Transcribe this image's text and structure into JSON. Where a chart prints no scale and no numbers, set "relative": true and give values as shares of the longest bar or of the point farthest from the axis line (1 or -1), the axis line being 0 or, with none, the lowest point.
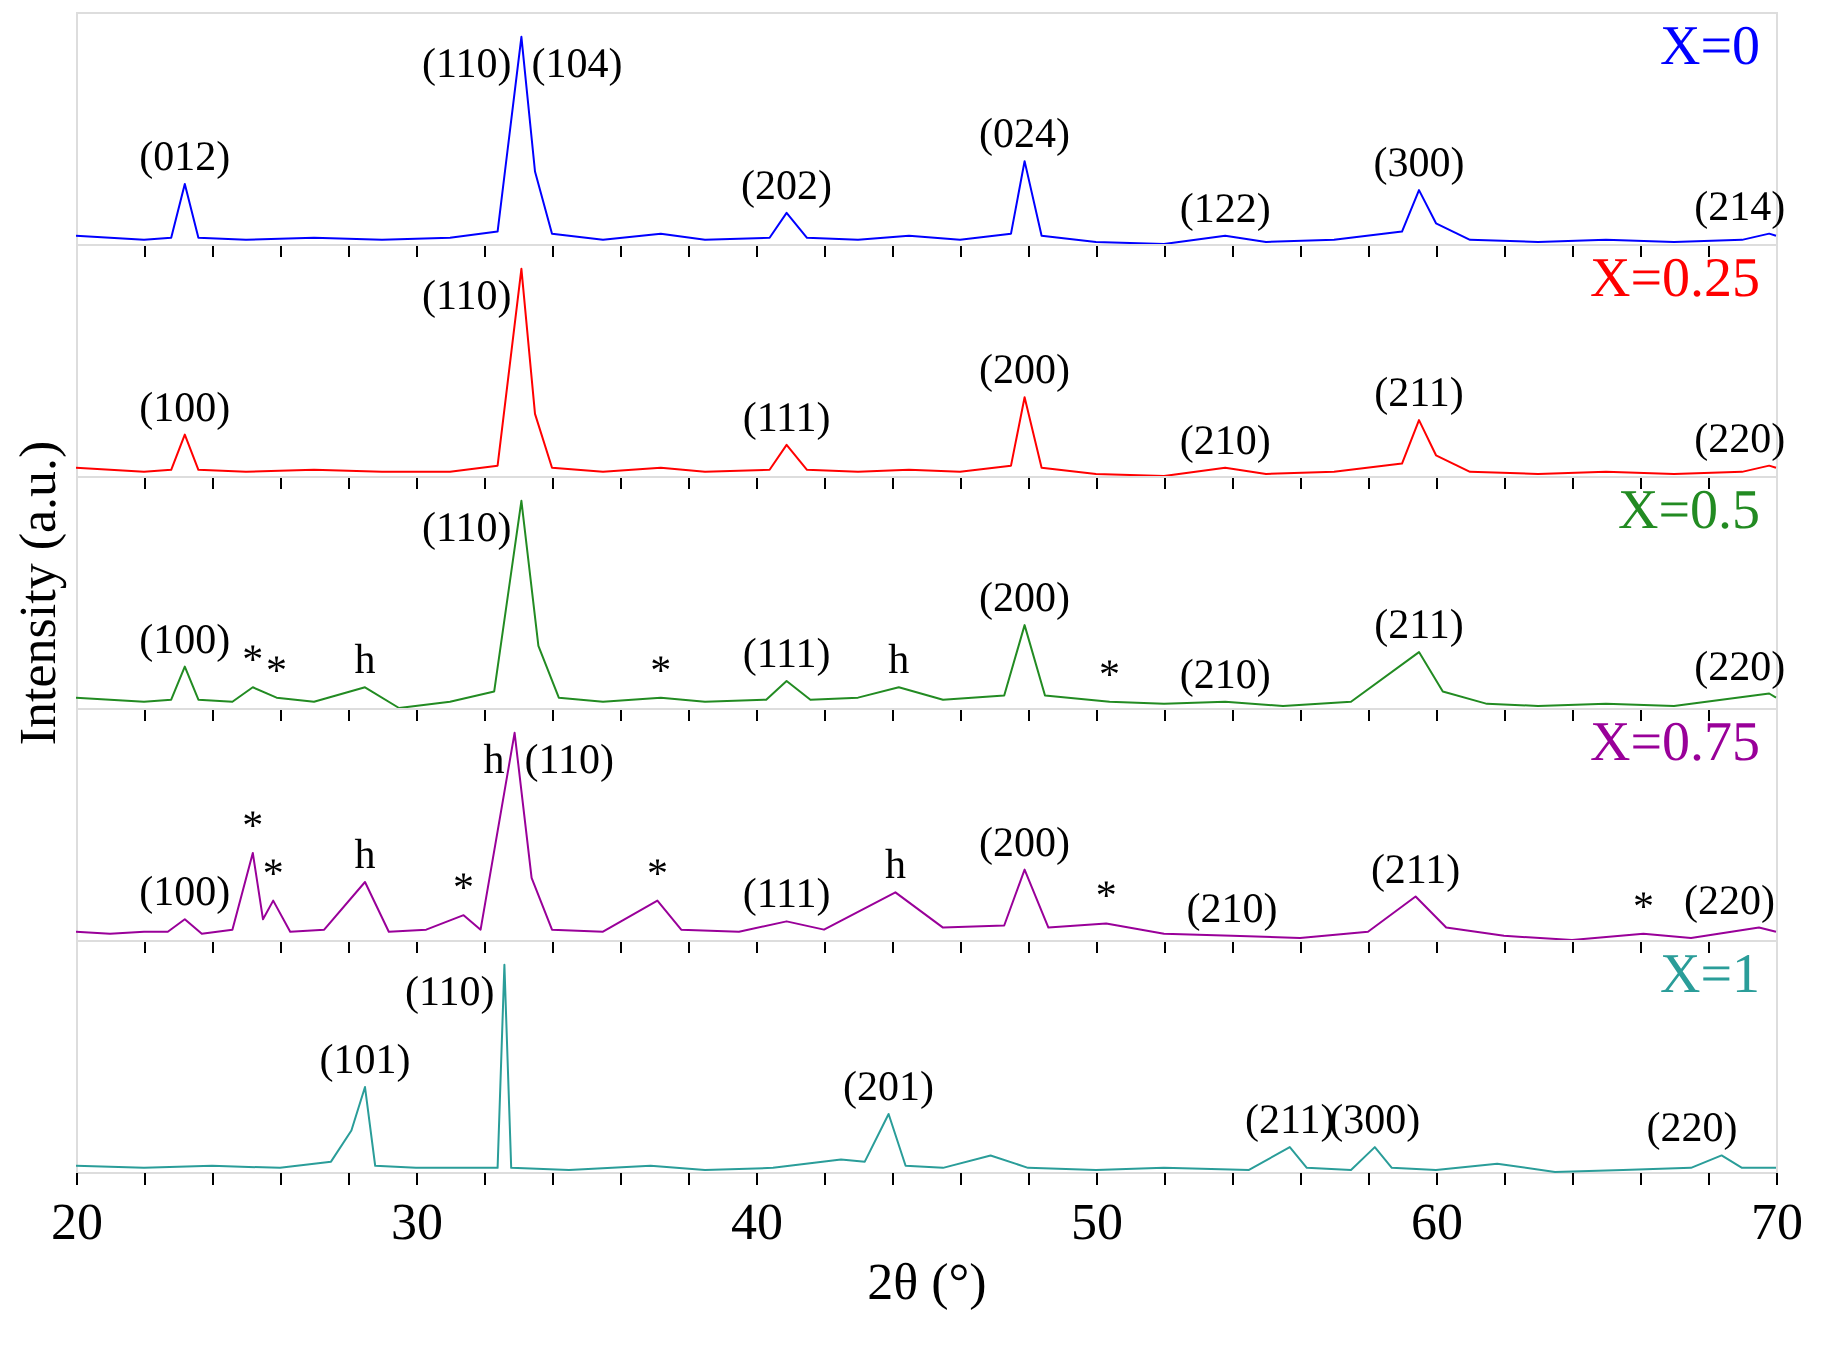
{
  "chart_data": [
    {
      "type": "line",
      "relative": true,
      "xlim": [
        20,
        70
      ],
      "xticks": [
        {
          "value": 20,
          "label": null
        },
        {
          "value": 22,
          "label": null
        },
        {
          "value": 24,
          "label": null
        },
        {
          "value": 26,
          "label": null
        },
        {
          "value": 28,
          "label": null
        },
        {
          "value": 30,
          "label": null
        },
        {
          "value": 32,
          "label": null
        },
        {
          "value": 34,
          "label": null
        },
        {
          "value": 36,
          "label": null
        },
        {
          "value": 38,
          "label": null
        },
        {
          "value": 40,
          "label": null
        },
        {
          "value": 42,
          "label": null
        },
        {
          "value": 44,
          "label": null
        },
        {
          "value": 46,
          "label": null
        },
        {
          "value": 48,
          "label": null
        },
        {
          "value": 50,
          "label": null
        },
        {
          "value": 52,
          "label": null
        },
        {
          "value": 54,
          "label": null
        },
        {
          "value": 56,
          "label": null
        },
        {
          "value": 58,
          "label": null
        },
        {
          "value": 60,
          "label": null
        },
        {
          "value": 62,
          "label": null
        },
        {
          "value": 64,
          "label": null
        },
        {
          "value": 66,
          "label": null
        },
        {
          "value": 68,
          "label": null
        },
        {
          "value": 70,
          "label": null
        }
      ],
      "tick_labels": false,
      "grid": false,
      "series": [
        {
          "name": "X=0",
          "color": "#0000ff",
          "x": [
            20,
            21,
            22,
            22.8,
            23.2,
            23.6,
            25,
            27,
            29,
            31,
            32.4,
            33.1,
            33.5,
            34,
            35.5,
            37.2,
            38.5,
            40.4,
            40.9,
            41.5,
            43,
            44.5,
            46,
            47.5,
            47.9,
            48.4,
            50,
            52,
            53.8,
            55,
            57,
            59,
            59.5,
            60,
            61,
            63,
            65,
            67,
            69,
            69.8,
            70
          ],
          "values": [
            0.04,
            0.03,
            0.02,
            0.03,
            0.29,
            0.03,
            0.02,
            0.03,
            0.02,
            0.03,
            0.06,
            1,
            0.35,
            0.05,
            0.02,
            0.05,
            0.02,
            0.03,
            0.15,
            0.03,
            0.02,
            0.04,
            0.02,
            0.05,
            0.4,
            0.04,
            0.01,
            0.0,
            0.04,
            0.01,
            0.02,
            0.06,
            0.26,
            0.1,
            0.02,
            0.01,
            0.02,
            0.01,
            0.02,
            0.05,
            0.04
          ]
        }
      ],
      "annotations": [
        {
          "text": "(012)",
          "x": 23.2,
          "y": 0.29
        },
        {
          "text": "(110)",
          "x": 33.1,
          "y": 1
        },
        {
          "text": "(104)",
          "x": 33.1,
          "y": 1
        },
        {
          "text": "(202)",
          "x": 40.9,
          "y": 0.15
        },
        {
          "text": "(024)",
          "x": 47.9,
          "y": 0.4
        },
        {
          "text": "(122)",
          "x": 53.8,
          "y": 0.04
        },
        {
          "text": "(300)",
          "x": 59.5,
          "y": 0.26
        },
        {
          "text": "(214)",
          "x": 69.8,
          "y": 0.05
        }
      ]
    },
    {
      "type": "line",
      "relative": true,
      "xlim": [
        20,
        70
      ],
      "xticks": [
        {
          "value": 20,
          "label": null
        },
        {
          "value": 22,
          "label": null
        },
        {
          "value": 24,
          "label": null
        },
        {
          "value": 26,
          "label": null
        },
        {
          "value": 28,
          "label": null
        },
        {
          "value": 30,
          "label": null
        },
        {
          "value": 32,
          "label": null
        },
        {
          "value": 34,
          "label": null
        },
        {
          "value": 36,
          "label": null
        },
        {
          "value": 38,
          "label": null
        },
        {
          "value": 40,
          "label": null
        },
        {
          "value": 42,
          "label": null
        },
        {
          "value": 44,
          "label": null
        },
        {
          "value": 46,
          "label": null
        },
        {
          "value": 48,
          "label": null
        },
        {
          "value": 50,
          "label": null
        },
        {
          "value": 52,
          "label": null
        },
        {
          "value": 54,
          "label": null
        },
        {
          "value": 56,
          "label": null
        },
        {
          "value": 58,
          "label": null
        },
        {
          "value": 60,
          "label": null
        },
        {
          "value": 62,
          "label": null
        },
        {
          "value": 64,
          "label": null
        },
        {
          "value": 66,
          "label": null
        },
        {
          "value": 68,
          "label": null
        },
        {
          "value": 70,
          "label": null
        }
      ],
      "tick_labels": false,
      "grid": false,
      "series": [
        {
          "name": "X=0.25",
          "color": "#ff0000",
          "x": [
            20,
            21,
            22,
            22.8,
            23.2,
            23.6,
            25,
            27,
            29,
            31,
            32.4,
            33.1,
            33.5,
            34,
            35.5,
            37.2,
            38.5,
            40.4,
            40.9,
            41.5,
            43,
            44.5,
            46,
            47.5,
            47.9,
            48.4,
            50,
            52,
            53.8,
            55,
            57,
            59,
            59.5,
            60,
            61,
            63,
            65,
            67,
            69,
            69.8,
            70
          ],
          "values": [
            0.04,
            0.03,
            0.02,
            0.03,
            0.2,
            0.03,
            0.02,
            0.03,
            0.02,
            0.02,
            0.05,
            1,
            0.3,
            0.04,
            0.02,
            0.04,
            0.02,
            0.03,
            0.15,
            0.03,
            0.02,
            0.03,
            0.02,
            0.05,
            0.38,
            0.04,
            0.01,
            0.0,
            0.04,
            0.01,
            0.02,
            0.06,
            0.27,
            0.1,
            0.02,
            0.01,
            0.02,
            0.01,
            0.02,
            0.05,
            0.04
          ]
        }
      ],
      "annotations": [
        {
          "text": "(100)",
          "x": 23.2,
          "y": 0.2
        },
        {
          "text": "(110)",
          "x": 33.1,
          "y": 1
        },
        {
          "text": "(111)",
          "x": 40.9,
          "y": 0.15
        },
        {
          "text": "(200)",
          "x": 47.9,
          "y": 0.38
        },
        {
          "text": "(210)",
          "x": 53.8,
          "y": 0.04
        },
        {
          "text": "(211)",
          "x": 59.5,
          "y": 0.27
        },
        {
          "text": "(220)",
          "x": 69.8,
          "y": 0.05
        }
      ]
    },
    {
      "type": "line",
      "relative": true,
      "xlim": [
        20,
        70
      ],
      "xticks": [
        {
          "value": 20,
          "label": null
        },
        {
          "value": 22,
          "label": null
        },
        {
          "value": 24,
          "label": null
        },
        {
          "value": 26,
          "label": null
        },
        {
          "value": 28,
          "label": null
        },
        {
          "value": 30,
          "label": null
        },
        {
          "value": 32,
          "label": null
        },
        {
          "value": 34,
          "label": null
        },
        {
          "value": 36,
          "label": null
        },
        {
          "value": 38,
          "label": null
        },
        {
          "value": 40,
          "label": null
        },
        {
          "value": 42,
          "label": null
        },
        {
          "value": 44,
          "label": null
        },
        {
          "value": 46,
          "label": null
        },
        {
          "value": 48,
          "label": null
        },
        {
          "value": 50,
          "label": null
        },
        {
          "value": 52,
          "label": null
        },
        {
          "value": 54,
          "label": null
        },
        {
          "value": 56,
          "label": null
        },
        {
          "value": 58,
          "label": null
        },
        {
          "value": 60,
          "label": null
        },
        {
          "value": 62,
          "label": null
        },
        {
          "value": 64,
          "label": null
        },
        {
          "value": 66,
          "label": null
        },
        {
          "value": 68,
          "label": null
        },
        {
          "value": 70,
          "label": null
        }
      ],
      "tick_labels": false,
      "grid": false,
      "ylabel": "Intensity (a.u.)",
      "series": [
        {
          "name": "X=0.5",
          "color": "#228b22",
          "x": [
            20,
            21,
            22,
            22.8,
            23.2,
            23.6,
            24.6,
            25.2,
            25.9,
            27,
            28.5,
            29.5,
            31,
            32.3,
            33.1,
            33.6,
            34.2,
            35.5,
            37.2,
            38.5,
            40.3,
            40.9,
            41.6,
            43,
            44.2,
            45.5,
            47.3,
            47.9,
            48.5,
            50.4,
            52,
            53.8,
            55.5,
            57.5,
            59.5,
            60.2,
            61.5,
            63,
            65,
            67,
            69.8,
            70
          ],
          "values": [
            0.05,
            0.04,
            0.03,
            0.04,
            0.2,
            0.04,
            0.03,
            0.1,
            0.05,
            0.03,
            0.1,
            0.0,
            0.03,
            0.08,
            1,
            0.3,
            0.05,
            0.03,
            0.05,
            0.03,
            0.04,
            0.13,
            0.04,
            0.05,
            0.1,
            0.04,
            0.06,
            0.4,
            0.06,
            0.03,
            0.02,
            0.03,
            0.01,
            0.03,
            0.27,
            0.08,
            0.02,
            0.01,
            0.02,
            0.01,
            0.07,
            0.05
          ]
        }
      ],
      "annotations": [
        {
          "text": "(100)",
          "x": 23.2,
          "y": 0.2
        },
        {
          "text": "*",
          "x": 25.2,
          "y": 0.1
        },
        {
          "text": "*",
          "x": 25.9,
          "y": 0.05
        },
        {
          "text": "h",
          "x": 28.5,
          "y": 0.1
        },
        {
          "text": "(110)",
          "x": 33.1,
          "y": 1
        },
        {
          "text": "*",
          "x": 37.2,
          "y": 0.05
        },
        {
          "text": "(111)",
          "x": 40.9,
          "y": 0.13
        },
        {
          "text": "h",
          "x": 44.2,
          "y": 0.1
        },
        {
          "text": "(200)",
          "x": 47.9,
          "y": 0.4
        },
        {
          "text": "*",
          "x": 50.4,
          "y": 0.03
        },
        {
          "text": "(210)",
          "x": 53.8,
          "y": 0.03
        },
        {
          "text": "(211)",
          "x": 59.5,
          "y": 0.27
        },
        {
          "text": "(220)",
          "x": 69.8,
          "y": 0.07
        }
      ]
    },
    {
      "type": "line",
      "relative": true,
      "xlim": [
        20,
        70
      ],
      "xticks": [
        {
          "value": 20,
          "label": null
        },
        {
          "value": 22,
          "label": null
        },
        {
          "value": 24,
          "label": null
        },
        {
          "value": 26,
          "label": null
        },
        {
          "value": 28,
          "label": null
        },
        {
          "value": 30,
          "label": null
        },
        {
          "value": 32,
          "label": null
        },
        {
          "value": 34,
          "label": null
        },
        {
          "value": 36,
          "label": null
        },
        {
          "value": 38,
          "label": null
        },
        {
          "value": 40,
          "label": null
        },
        {
          "value": 42,
          "label": null
        },
        {
          "value": 44,
          "label": null
        },
        {
          "value": 46,
          "label": null
        },
        {
          "value": 48,
          "label": null
        },
        {
          "value": 50,
          "label": null
        },
        {
          "value": 52,
          "label": null
        },
        {
          "value": 54,
          "label": null
        },
        {
          "value": 56,
          "label": null
        },
        {
          "value": 58,
          "label": null
        },
        {
          "value": 60,
          "label": null
        },
        {
          "value": 62,
          "label": null
        },
        {
          "value": 64,
          "label": null
        },
        {
          "value": 66,
          "label": null
        },
        {
          "value": 68,
          "label": null
        },
        {
          "value": 70,
          "label": null
        }
      ],
      "tick_labels": false,
      "grid": false,
      "series": [
        {
          "name": "X=0.75",
          "color": "#990099",
          "x": [
            20,
            21,
            22,
            22.7,
            23.2,
            23.7,
            24.6,
            25.2,
            25.5,
            25.8,
            26.3,
            27.3,
            28.5,
            29.2,
            30.3,
            31.4,
            31.9,
            32.9,
            33.4,
            34,
            35.5,
            37.1,
            37.8,
            39.5,
            40.9,
            42,
            44.1,
            45.5,
            47.3,
            47.9,
            48.6,
            50.3,
            52,
            54,
            56,
            58,
            59.4,
            60.3,
            62,
            64,
            66.1,
            67.5,
            69.5,
            70
          ],
          "values": [
            0.04,
            0.03,
            0.04,
            0.04,
            0.1,
            0.03,
            0.05,
            0.42,
            0.1,
            0.19,
            0.04,
            0.05,
            0.28,
            0.04,
            0.05,
            0.12,
            0.05,
            1,
            0.3,
            0.05,
            0.04,
            0.19,
            0.05,
            0.04,
            0.09,
            0.05,
            0.23,
            0.06,
            0.07,
            0.34,
            0.06,
            0.08,
            0.03,
            0.02,
            0.01,
            0.04,
            0.21,
            0.06,
            0.02,
            0.0,
            0.03,
            0.01,
            0.06,
            0.04
          ]
        }
      ],
      "annotations": [
        {
          "text": "(100)",
          "x": 23.2,
          "y": 0.1
        },
        {
          "text": "*",
          "x": 25.2,
          "y": 0.42
        },
        {
          "text": "*",
          "x": 25.8,
          "y": 0.19
        },
        {
          "text": "h",
          "x": 28.5,
          "y": 0.28
        },
        {
          "text": "*",
          "x": 31.4,
          "y": 0.12
        },
        {
          "text": "h",
          "x": 32.9,
          "y": 1
        },
        {
          "text": "(110)",
          "x": 32.9,
          "y": 1
        },
        {
          "text": "*",
          "x": 37.1,
          "y": 0.19
        },
        {
          "text": "(111)",
          "x": 40.9,
          "y": 0.09
        },
        {
          "text": "h",
          "x": 44.1,
          "y": 0.23
        },
        {
          "text": "(200)",
          "x": 47.9,
          "y": 0.34
        },
        {
          "text": "*",
          "x": 50.3,
          "y": 0.08
        },
        {
          "text": "(210)",
          "x": 54,
          "y": 0.02
        },
        {
          "text": "(211)",
          "x": 59.4,
          "y": 0.21
        },
        {
          "text": "*",
          "x": 66.1,
          "y": 0.03
        },
        {
          "text": "(220)",
          "x": 69.5,
          "y": 0.06
        }
      ]
    },
    {
      "type": "line",
      "relative": true,
      "xlim": [
        20,
        70
      ],
      "xticks": [
        20,
        {
          "value": 22,
          "label": null
        },
        {
          "value": 24,
          "label": null
        },
        {
          "value": 26,
          "label": null
        },
        {
          "value": 28,
          "label": null
        },
        30,
        {
          "value": 32,
          "label": null
        },
        {
          "value": 34,
          "label": null
        },
        {
          "value": 36,
          "label": null
        },
        {
          "value": 38,
          "label": null
        },
        40,
        {
          "value": 42,
          "label": null
        },
        {
          "value": 44,
          "label": null
        },
        {
          "value": 46,
          "label": null
        },
        {
          "value": 48,
          "label": null
        },
        50,
        {
          "value": 52,
          "label": null
        },
        {
          "value": 54,
          "label": null
        },
        {
          "value": 56,
          "label": null
        },
        {
          "value": 58,
          "label": null
        },
        60,
        {
          "value": 62,
          "label": null
        },
        {
          "value": 64,
          "label": null
        },
        {
          "value": 66,
          "label": null
        },
        {
          "value": 68,
          "label": null
        },
        70
      ],
      "tick_labels": "x",
      "grid": false,
      "xlabel": "2θ (°)",
      "series": [
        {
          "name": "X=1",
          "color": "#2a9d99",
          "x": [
            20,
            22,
            24,
            26,
            27.5,
            28.1,
            28.5,
            28.8,
            30,
            32.4,
            32.6,
            32.8,
            34.5,
            36.9,
            38.5,
            40.5,
            42.5,
            43.2,
            43.9,
            44.4,
            45.5,
            46.9,
            48,
            50,
            52,
            54.5,
            55.7,
            56.2,
            57.5,
            58.2,
            58.7,
            60,
            61.8,
            63.5,
            65.5,
            67.5,
            68.4,
            69,
            70
          ],
          "values": [
            0.03,
            0.02,
            0.03,
            0.02,
            0.05,
            0.2,
            0.41,
            0.03,
            0.02,
            0.02,
            1,
            0.02,
            0.01,
            0.03,
            0.01,
            0.02,
            0.06,
            0.05,
            0.28,
            0.03,
            0.02,
            0.08,
            0.02,
            0.01,
            0.02,
            0.01,
            0.12,
            0.02,
            0.01,
            0.12,
            0.02,
            0.01,
            0.04,
            0.0,
            0.01,
            0.02,
            0.08,
            0.02,
            0.02
          ]
        }
      ],
      "annotations": [
        {
          "text": "(101)",
          "x": 28.5,
          "y": 0.41
        },
        {
          "text": "(110)",
          "x": 32.6,
          "y": 1
        },
        {
          "text": "(201)",
          "x": 43.9,
          "y": 0.28
        },
        {
          "text": "(211)",
          "x": 55.7,
          "y": 0.12
        },
        {
          "text": "(300)",
          "x": 58.2,
          "y": 0.12
        },
        {
          "text": "(220)",
          "x": 68.4,
          "y": 0.08
        }
      ]
    }
  ]
}
